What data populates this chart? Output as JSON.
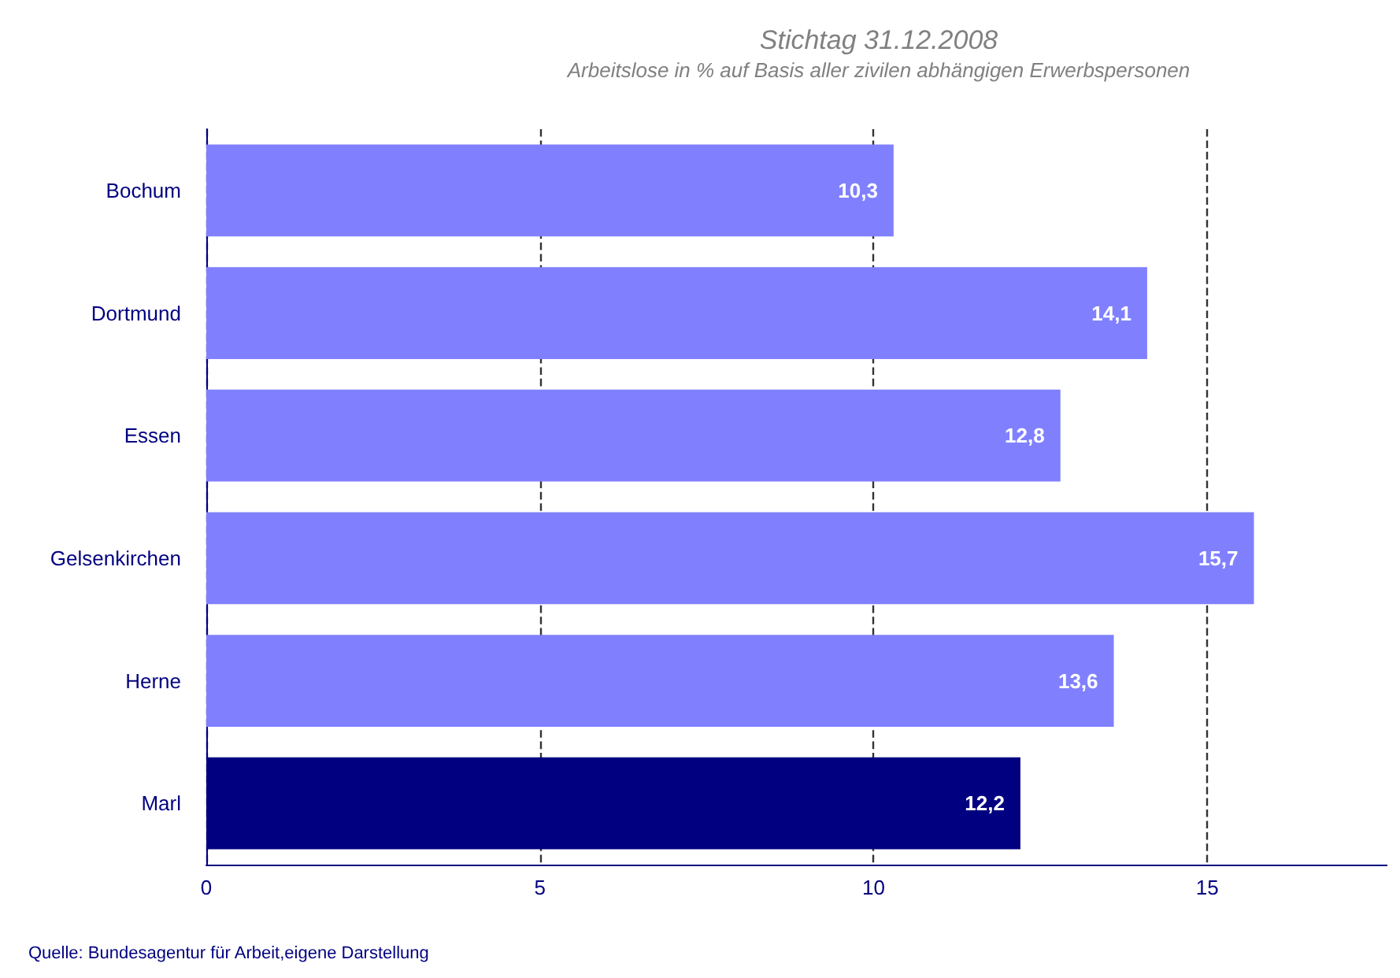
{
  "chart_data": {
    "type": "bar",
    "orientation": "horizontal",
    "title": "Stichtag 31.12.2008",
    "subtitle": "Arbeitslose in % auf Basis aller zivilen abhängigen Erwerbspersonen",
    "categories": [
      "Bochum",
      "Dortmund",
      "Essen",
      "Gelsenkirchen",
      "Herne",
      "Marl"
    ],
    "values": [
      10.3,
      14.1,
      12.8,
      15.7,
      13.6,
      12.2
    ],
    "colors": [
      "#8080ff",
      "#8080ff",
      "#8080ff",
      "#8080ff",
      "#8080ff",
      "#000080"
    ],
    "value_labels": [
      "10,3",
      "14,1",
      "12,8",
      "15,7",
      "13,6",
      "12,2"
    ],
    "xlim": [
      0,
      17.7
    ],
    "xticks": [
      0,
      5,
      10,
      15
    ],
    "grid": "x",
    "annotations": [
      "Quelle: Bundesagentur für Arbeit,eigene Darstellung"
    ]
  }
}
